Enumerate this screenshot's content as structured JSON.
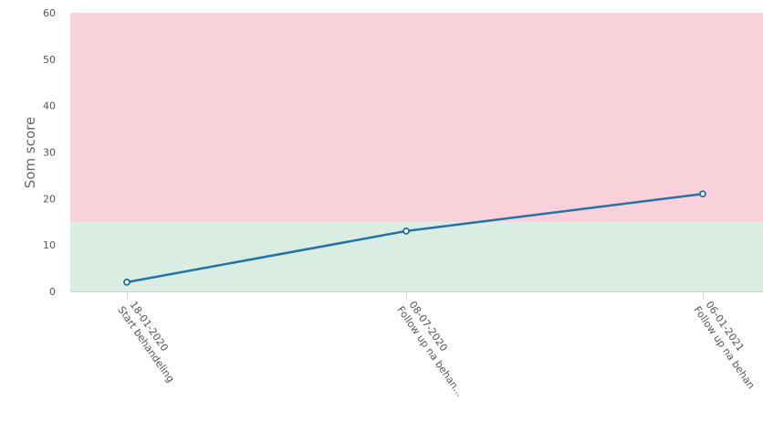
{
  "chart_data": {
    "type": "line",
    "title": "",
    "xlabel": "",
    "ylabel": "Som score",
    "ylim": [
      0,
      60
    ],
    "yticks": [
      0,
      10,
      20,
      30,
      40,
      50,
      60
    ],
    "grid": false,
    "legend": "none",
    "bands": [
      {
        "from": 0,
        "to": 15,
        "color": "#d9ede3"
      },
      {
        "from": 15,
        "to": 60,
        "color": "#f9d1da"
      }
    ],
    "categories": [
      {
        "date": "18-01-2020",
        "label": "Start behandeling"
      },
      {
        "date": "08-07-2020",
        "label": "Follow up na behan..."
      },
      {
        "date": "06-01-2021",
        "label": "Follow up na behan"
      }
    ],
    "series": [
      {
        "values": [
          2,
          13,
          21
        ],
        "color": "#2473a2"
      }
    ]
  }
}
